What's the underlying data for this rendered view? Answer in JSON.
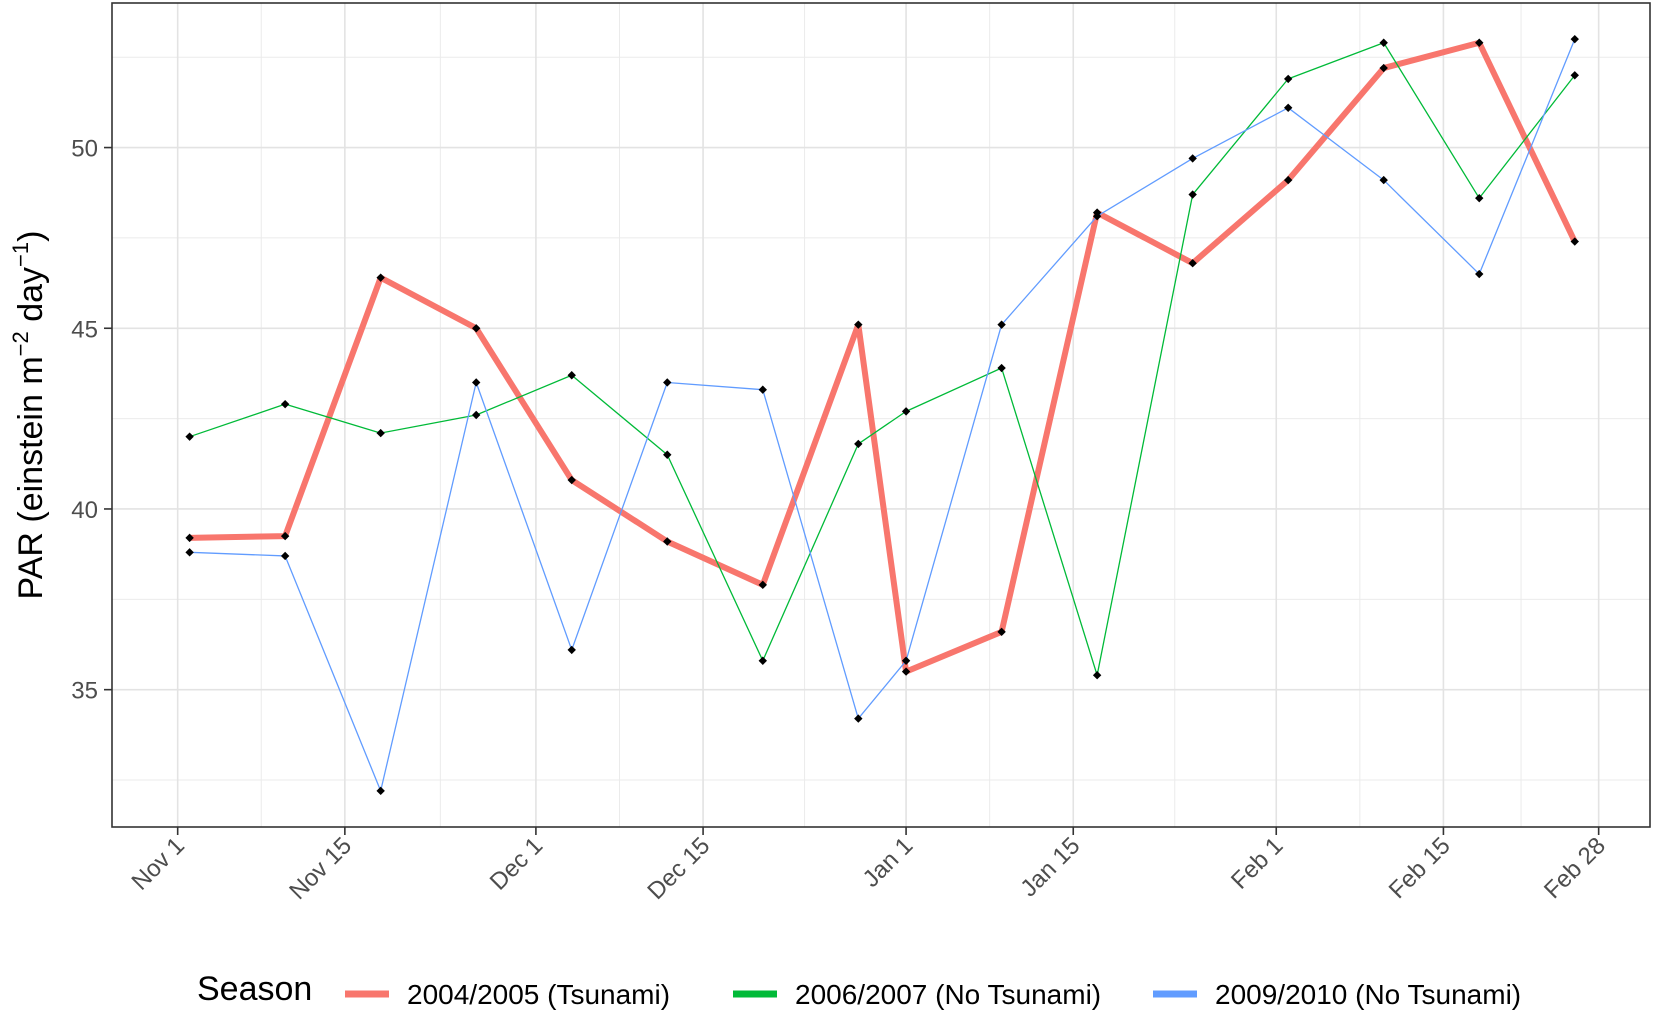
{
  "chart_data": {
    "type": "line",
    "ylabel": "PAR (einstein m^-2 day^-1)",
    "ylabel_parts": {
      "main": "PAR  (einstein m",
      "sup1": "−2",
      "mid": " day",
      "sup2": "−1",
      "end": ")"
    },
    "xlabel": "",
    "ylim": [
      31.2,
      54
    ],
    "y_ticks": [
      35,
      40,
      45,
      50
    ],
    "x_ticks": [
      {
        "label": "Nov 1",
        "day": 0
      },
      {
        "label": "Nov 15",
        "day": 14
      },
      {
        "label": "Dec 1",
        "day": 30
      },
      {
        "label": "Dec 15",
        "day": 44
      },
      {
        "label": "Jan 1",
        "day": 61
      },
      {
        "label": "Jan 15",
        "day": 75
      },
      {
        "label": "Feb 1",
        "day": 92
      },
      {
        "label": "Feb 15",
        "day": 106
      },
      {
        "label": "Feb 28",
        "day": 119
      }
    ],
    "x_minor_ticks": [
      7,
      22,
      37,
      52.5,
      68,
      83.5,
      99,
      112.5
    ],
    "xlim": [
      -5.5,
      123.3
    ],
    "grid": true,
    "legend": {
      "title": "Season",
      "placement": "bottom"
    },
    "series": [
      {
        "name": "2004/2005 (Tsunami)",
        "color": "#f8766d",
        "line_width": 6,
        "points": [
          [
            1,
            39.2
          ],
          [
            9,
            39.25
          ],
          [
            17,
            46.4
          ],
          [
            25,
            45.0
          ],
          [
            33,
            40.8
          ],
          [
            41,
            39.1
          ],
          [
            49,
            37.9
          ],
          [
            57,
            45.1
          ],
          [
            61,
            35.5
          ],
          [
            69,
            36.6
          ],
          [
            77,
            48.2
          ],
          [
            85,
            46.8
          ],
          [
            93,
            49.1
          ],
          [
            101,
            52.2
          ],
          [
            109,
            52.9
          ],
          [
            117,
            47.4
          ]
        ]
      },
      {
        "name": "2006/2007 (No Tsunami)",
        "color": "#00ba38",
        "line_width": 1.3,
        "points": [
          [
            1,
            42.0
          ],
          [
            9,
            42.9
          ],
          [
            17,
            42.1
          ],
          [
            25,
            42.6
          ],
          [
            33,
            43.7
          ],
          [
            41,
            41.5
          ],
          [
            49,
            35.8
          ],
          [
            57,
            41.8
          ],
          [
            61,
            42.7
          ],
          [
            69,
            43.9
          ],
          [
            77,
            35.4
          ],
          [
            85,
            48.7
          ],
          [
            93,
            51.9
          ],
          [
            101,
            52.9
          ],
          [
            109,
            48.6
          ],
          [
            117,
            52.0
          ]
        ]
      },
      {
        "name": "2009/2010 (No Tsunami)",
        "color": "#619cff",
        "line_width": 1.3,
        "points": [
          [
            1,
            38.8
          ],
          [
            9,
            38.7
          ],
          [
            17,
            32.2
          ],
          [
            25,
            43.5
          ],
          [
            33,
            36.1
          ],
          [
            41,
            43.5
          ],
          [
            49,
            43.3
          ],
          [
            57,
            34.2
          ],
          [
            61,
            35.8
          ],
          [
            69,
            45.1
          ],
          [
            77,
            48.1
          ],
          [
            85,
            49.7
          ],
          [
            93,
            51.1
          ],
          [
            101,
            49.1
          ],
          [
            109,
            46.5
          ],
          [
            117,
            53.0
          ]
        ]
      }
    ]
  }
}
